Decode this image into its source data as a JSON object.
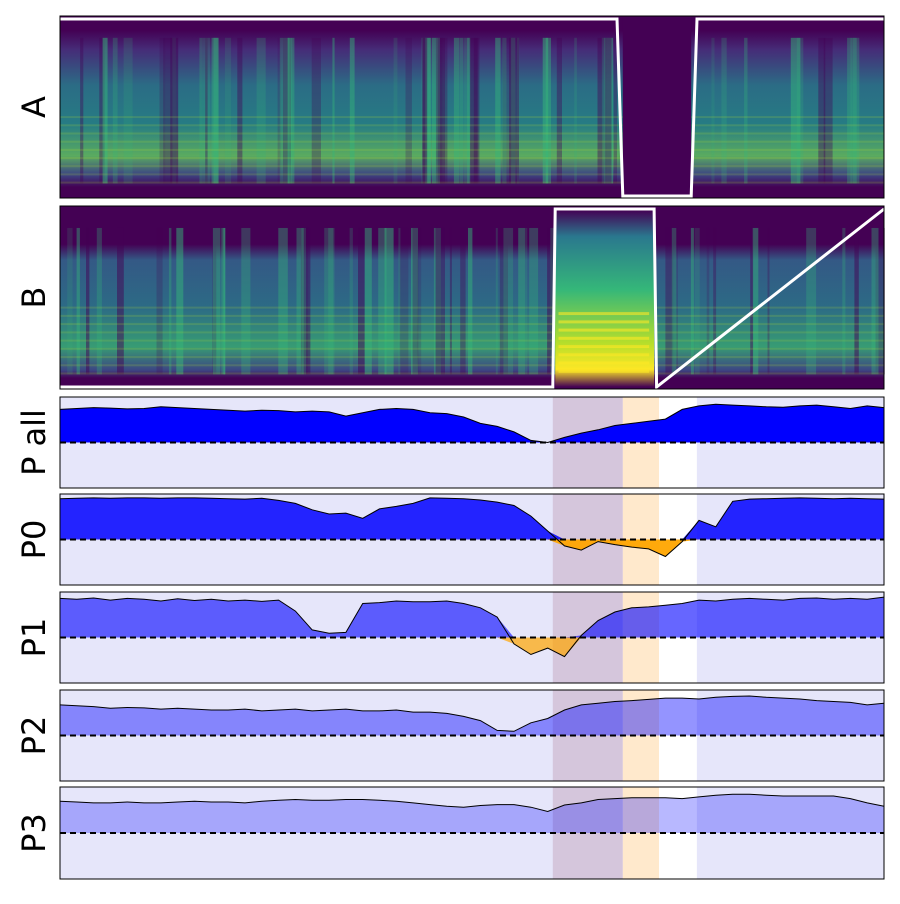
{
  "colors": {
    "spec_bg": "#440154",
    "envelope_line": "#ffffff",
    "positive_fill": "#0000ff",
    "negative_fill": "#ffa500",
    "panel_bg": "#e6e6fa",
    "region_pink": "#c0a0b8",
    "region_orange": "#ffe9cc",
    "region_white": "#ffffff",
    "zero_line": "#000000"
  },
  "chart_data": [
    {
      "type": "heatmap",
      "label": "A",
      "description": "spectrogram with white gating envelope",
      "envelope": {
        "x": [
          0,
          0.676,
          0.683,
          0.766,
          0.773,
          1
        ],
        "y": [
          1,
          1,
          0,
          0,
          1,
          1
        ]
      }
    },
    {
      "type": "heatmap",
      "label": "B",
      "description": "spectrogram with white gating envelope",
      "envelope": {
        "x": [
          0,
          0.598,
          0.601,
          0.721,
          0.724,
          1
        ],
        "y": [
          0,
          0,
          1,
          1,
          0,
          1
        ]
      }
    },
    {
      "type": "area",
      "label": "P all",
      "ylim": [
        -1,
        1
      ],
      "zero_line": true,
      "opacity": 1.0,
      "regions": [
        {
          "from": 0.598,
          "to": 0.683,
          "kind": "pink"
        },
        {
          "from": 0.683,
          "to": 0.727,
          "kind": "orange"
        },
        {
          "from": 0.727,
          "to": 0.773,
          "kind": "white"
        }
      ],
      "values": [
        0.78,
        0.8,
        0.82,
        0.81,
        0.79,
        0.8,
        0.84,
        0.82,
        0.8,
        0.78,
        0.76,
        0.74,
        0.76,
        0.75,
        0.72,
        0.74,
        0.72,
        0.62,
        0.7,
        0.78,
        0.8,
        0.78,
        0.7,
        0.68,
        0.6,
        0.45,
        0.38,
        0.25,
        0.05,
        0.0,
        0.12,
        0.22,
        0.3,
        0.4,
        0.45,
        0.5,
        0.55,
        0.78,
        0.86,
        0.9,
        0.88,
        0.86,
        0.84,
        0.83,
        0.86,
        0.88,
        0.84,
        0.8,
        0.86,
        0.82
      ]
    },
    {
      "type": "area",
      "label": "P0",
      "ylim": [
        -1,
        1
      ],
      "zero_line": true,
      "opacity": 0.85,
      "regions": [
        {
          "from": 0.598,
          "to": 0.683,
          "kind": "pink"
        },
        {
          "from": 0.683,
          "to": 0.727,
          "kind": "orange"
        },
        {
          "from": 0.727,
          "to": 0.773,
          "kind": "white"
        }
      ],
      "values": [
        0.96,
        0.97,
        0.98,
        0.97,
        0.98,
        0.98,
        0.97,
        0.98,
        0.98,
        0.97,
        0.96,
        0.95,
        0.97,
        0.92,
        0.85,
        0.7,
        0.6,
        0.62,
        0.5,
        0.72,
        0.78,
        0.85,
        0.98,
        0.97,
        0.96,
        0.93,
        0.88,
        0.8,
        0.55,
        0.2,
        -0.15,
        -0.25,
        -0.05,
        -0.12,
        -0.18,
        -0.22,
        -0.4,
        -0.05,
        0.45,
        0.3,
        0.9,
        0.95,
        0.96,
        0.97,
        0.98,
        0.97,
        0.96,
        0.97,
        0.96,
        0.95
      ]
    },
    {
      "type": "area",
      "label": "P1",
      "ylim": [
        -1,
        1
      ],
      "zero_line": true,
      "opacity": 0.6,
      "regions": [
        {
          "from": 0.598,
          "to": 0.683,
          "kind": "pink"
        },
        {
          "from": 0.683,
          "to": 0.727,
          "kind": "orange"
        },
        {
          "from": 0.727,
          "to": 0.773,
          "kind": "white"
        }
      ],
      "values": [
        0.92,
        0.9,
        0.93,
        0.88,
        0.92,
        0.9,
        0.86,
        0.91,
        0.87,
        0.9,
        0.86,
        0.88,
        0.85,
        0.88,
        0.62,
        0.18,
        0.1,
        0.12,
        0.8,
        0.82,
        0.86,
        0.84,
        0.84,
        0.86,
        0.8,
        0.7,
        0.48,
        -0.15,
        -0.4,
        -0.25,
        -0.45,
        0.05,
        0.4,
        0.6,
        0.7,
        0.72,
        0.76,
        0.8,
        0.88,
        0.86,
        0.9,
        0.92,
        0.9,
        0.88,
        0.92,
        0.93,
        0.9,
        0.92,
        0.9,
        0.95
      ]
    },
    {
      "type": "area",
      "label": "P2",
      "ylim": [
        -1,
        1
      ],
      "zero_line": true,
      "opacity": 0.42,
      "regions": [
        {
          "from": 0.598,
          "to": 0.683,
          "kind": "pink"
        },
        {
          "from": 0.683,
          "to": 0.727,
          "kind": "orange"
        },
        {
          "from": 0.727,
          "to": 0.773,
          "kind": "white"
        }
      ],
      "values": [
        0.72,
        0.7,
        0.68,
        0.64,
        0.66,
        0.65,
        0.62,
        0.64,
        0.62,
        0.6,
        0.6,
        0.62,
        0.58,
        0.6,
        0.62,
        0.58,
        0.6,
        0.62,
        0.58,
        0.58,
        0.6,
        0.55,
        0.55,
        0.52,
        0.45,
        0.35,
        0.12,
        0.1,
        0.3,
        0.4,
        0.6,
        0.72,
        0.76,
        0.8,
        0.82,
        0.85,
        0.88,
        0.88,
        0.86,
        0.9,
        0.92,
        0.93,
        0.9,
        0.88,
        0.86,
        0.82,
        0.8,
        0.78,
        0.72,
        0.76
      ]
    },
    {
      "type": "area",
      "label": "P3",
      "ylim": [
        -1,
        1
      ],
      "zero_line": true,
      "opacity": 0.28,
      "regions": [
        {
          "from": 0.598,
          "to": 0.683,
          "kind": "pink"
        },
        {
          "from": 0.683,
          "to": 0.727,
          "kind": "orange"
        },
        {
          "from": 0.727,
          "to": 0.773,
          "kind": "white"
        }
      ],
      "values": [
        0.74,
        0.72,
        0.7,
        0.7,
        0.72,
        0.7,
        0.7,
        0.72,
        0.74,
        0.72,
        0.72,
        0.7,
        0.74,
        0.76,
        0.78,
        0.76,
        0.76,
        0.78,
        0.78,
        0.76,
        0.74,
        0.7,
        0.66,
        0.62,
        0.6,
        0.64,
        0.66,
        0.66,
        0.6,
        0.5,
        0.65,
        0.7,
        0.78,
        0.8,
        0.82,
        0.82,
        0.82,
        0.8,
        0.84,
        0.88,
        0.9,
        0.9,
        0.88,
        0.86,
        0.86,
        0.86,
        0.86,
        0.8,
        0.7,
        0.62
      ]
    }
  ]
}
